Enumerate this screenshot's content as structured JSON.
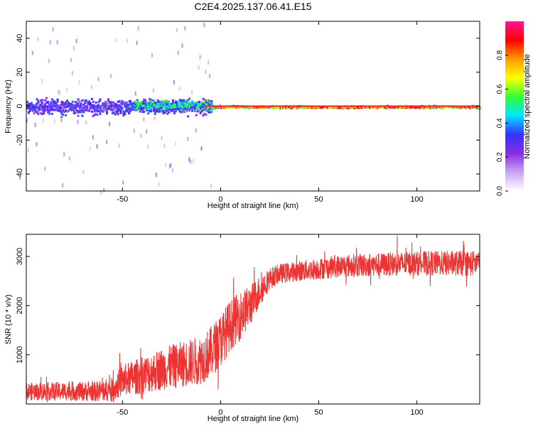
{
  "title": "C2E4.2025.137.06.41.E15",
  "chart_data": [
    {
      "type": "heatmap",
      "xlabel": "Height of straight line (km)",
      "ylabel": "Frequency (Hz)",
      "xlim": [
        -99,
        132
      ],
      "ylim": [
        -50,
        50
      ],
      "x_ticks": [
        -50,
        0,
        50,
        100
      ],
      "y_ticks": [
        -40,
        -20,
        0,
        20,
        40
      ],
      "colorbar": {
        "label": "Normalized spectral amplitude",
        "range": [
          0,
          1
        ],
        "ticks": [
          "0.0",
          "0.2",
          "0.4",
          "0.6",
          "0.8"
        ],
        "colors": [
          "#ffffff",
          "#c9a4f5",
          "#8a2be2",
          "#3333ff",
          "#00e5ff",
          "#33ff33",
          "#ffff00",
          "#ff9900",
          "#ff0000",
          "#ff1493"
        ]
      },
      "bands": [
        {
          "x_from": -99,
          "x_to": -5,
          "f_center": 0,
          "core_halfwidth_hz": 6,
          "scatter_halfwidth_hz": 50,
          "amplitude": 0.35
        },
        {
          "x_from": -45,
          "x_to": -5,
          "f_center": 1,
          "core_halfwidth_hz": 4,
          "scatter_halfwidth_hz": 10,
          "amplitude": 0.55
        },
        {
          "x_from": -5,
          "x_to": 132,
          "f_center": 0,
          "core_halfwidth_hz": 1,
          "scatter_halfwidth_hz": 3,
          "amplitude": 0.92
        }
      ]
    },
    {
      "type": "line",
      "xlabel": "Height of straight line (km)",
      "ylabel": "SNR (10 * v/v)",
      "xlim": [
        -99,
        132
      ],
      "ylim": [
        0,
        3450
      ],
      "x_ticks": [
        -50,
        0,
        50,
        100
      ],
      "y_ticks": [
        1000,
        2000,
        3000
      ],
      "color": "#ee3333",
      "trend": {
        "x": [
          -99,
          -80,
          -65,
          -55,
          -50,
          -40,
          -30,
          -20,
          -10,
          -5,
          0,
          5,
          10,
          15,
          20,
          25,
          30,
          40,
          50,
          60,
          70,
          80,
          100,
          120,
          132
        ],
        "mean": [
          250,
          260,
          250,
          290,
          480,
          580,
          710,
          800,
          900,
          1050,
          1300,
          1600,
          1800,
          2000,
          2300,
          2550,
          2650,
          2700,
          2750,
          2800,
          2820,
          2830,
          2860,
          2860,
          2860
        ],
        "noise": [
          180,
          190,
          200,
          250,
          320,
          380,
          430,
          470,
          500,
          520,
          550,
          520,
          500,
          420,
          330,
          220,
          200,
          210,
          220,
          230,
          240,
          240,
          250,
          260,
          260
        ]
      }
    }
  ]
}
